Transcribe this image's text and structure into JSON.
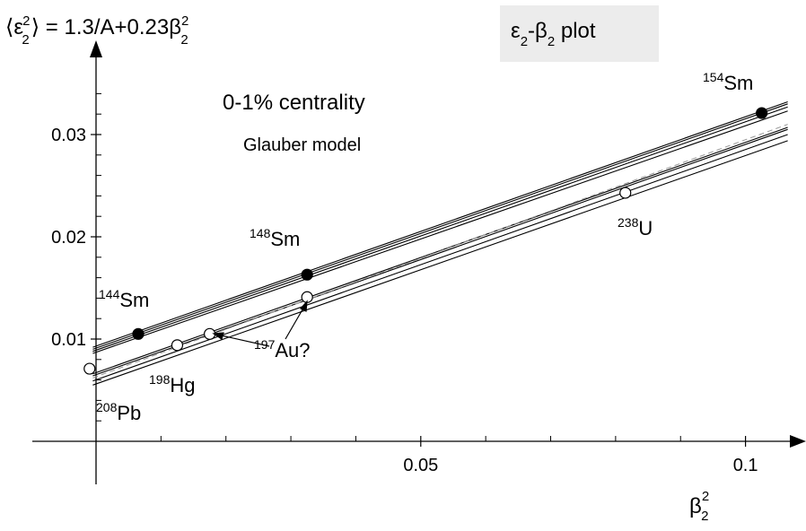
{
  "title_formula": {
    "open": "⟨ε",
    "sup": "2",
    "sub": "2",
    "close": "⟩ = 1.3/A+0.23β",
    "tail_sup": "2",
    "tail_sub": "2"
  },
  "plot_box": {
    "eps": "ε",
    "eps_sub": "2",
    "dash": "-β",
    "beta_sub": "2",
    "rest": " plot"
  },
  "annotations": {
    "centrality": "0-1% centrality",
    "model": "Glauber model"
  },
  "xaxis_label": {
    "base": "β",
    "sup": "2",
    "sub": "2"
  },
  "colors": {
    "line": "#000000",
    "box_bg": "#ececec",
    "dashed": "#999999"
  },
  "chart_data": {
    "type": "scatter",
    "xlim": [
      -0.0095,
      0.109
    ],
    "ylim": [
      -0.0011,
      0.0355
    ],
    "x_ticks": [
      {
        "value": 0.05,
        "label": "0.05"
      },
      {
        "value": 0.1,
        "label": "0.1"
      }
    ],
    "x_minor_ticks": [
      0.01,
      0.02,
      0.03,
      0.04,
      0.06,
      0.07,
      0.08,
      0.09
    ],
    "y_ticks": [
      {
        "value": 0.01,
        "label": "0.01"
      },
      {
        "value": 0.02,
        "label": "0.02"
      },
      {
        "value": 0.03,
        "label": "0.03"
      }
    ],
    "y_minor_ticks": [
      0.002,
      0.004,
      0.006,
      0.008,
      0.012,
      0.014,
      0.016,
      0.018,
      0.022,
      0.024,
      0.026,
      0.028,
      0.032,
      0.034
    ],
    "series": [
      {
        "label": "Sm",
        "filled": true,
        "points": [
          {
            "x": 0.0065,
            "y": 0.0105,
            "mass": "144",
            "el": "Sm"
          },
          {
            "x": 0.0325,
            "y": 0.0163,
            "mass": "148",
            "el": "Sm"
          },
          {
            "x": 0.1025,
            "y": 0.0321,
            "mass": "154",
            "el": "Sm"
          }
        ]
      },
      {
        "label": "Pb, Hg, Au, U",
        "filled": false,
        "points": [
          {
            "x": -0.001,
            "y": 0.0071,
            "mass": "208",
            "el": "Pb"
          },
          {
            "x": 0.0125,
            "y": 0.0094,
            "mass": "198",
            "el": "Hg"
          },
          {
            "x": 0.0175,
            "y": 0.0105,
            "mass": "197",
            "el": "Au?"
          },
          {
            "x": 0.0325,
            "y": 0.0141,
            "mass": "197",
            "el": "Au?"
          },
          {
            "x": 0.0815,
            "y": 0.0243,
            "mass": "238",
            "el": "U"
          }
        ]
      }
    ],
    "fit_lines": [
      {
        "x": [
          -0.0005,
          0.1065
        ],
        "y": [
          0.0092,
          0.0332
        ]
      },
      {
        "x": [
          -0.0005,
          0.1065
        ],
        "y": [
          0.009,
          0.033
        ]
      },
      {
        "x": [
          -0.0005,
          0.1065
        ],
        "y": [
          0.0088,
          0.0327
        ]
      },
      {
        "x": [
          -0.0005,
          0.1065
        ],
        "y": [
          0.0086,
          0.0323
        ]
      },
      {
        "x": [
          -0.0005,
          0.1065
        ],
        "y": [
          0.0066,
          0.0307
        ]
      },
      {
        "x": [
          -0.0005,
          0.1065
        ],
        "y": [
          0.0064,
          0.0305
        ]
      },
      {
        "x": [
          -0.0005,
          0.1065
        ],
        "y": [
          0.0059,
          0.03
        ]
      },
      {
        "x": [
          -0.0005,
          0.1065
        ],
        "y": [
          0.0055,
          0.0294
        ]
      }
    ],
    "dashed_line": {
      "x": [
        -0.0005,
        0.1065
      ],
      "y": [
        0.0062,
        0.031
      ]
    },
    "point_labels": [
      {
        "mass": "144",
        "el": "Sm"
      },
      {
        "mass": "148",
        "el": "Sm"
      },
      {
        "mass": "154",
        "el": "Sm"
      },
      {
        "mass": "238",
        "el": "U"
      },
      {
        "mass": "197",
        "el": "Au?"
      },
      {
        "mass": "198",
        "el": "Hg"
      },
      {
        "mass": "208",
        "el": "Pb"
      }
    ]
  }
}
